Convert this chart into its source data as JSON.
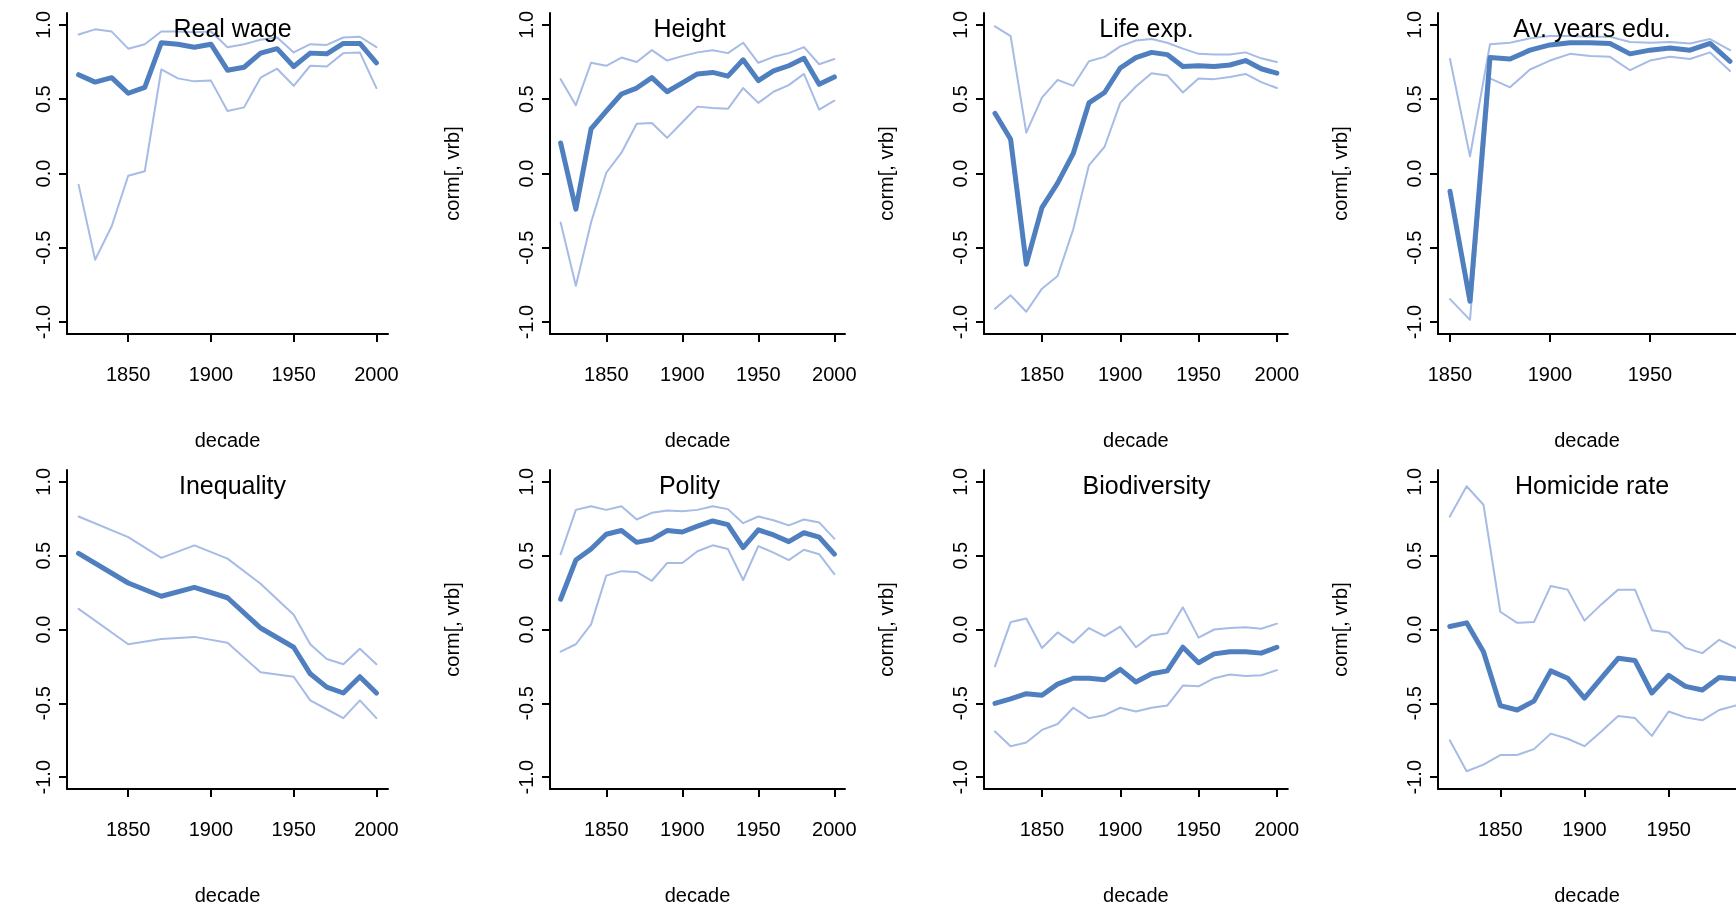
{
  "chart_data": [
    {
      "type": "line",
      "title": "Real wage",
      "xlabel": "decade",
      "grid": false,
      "marker": "none",
      "line_style": "solid",
      "x": [
        1820,
        1830,
        1840,
        1850,
        1860,
        1870,
        1880,
        1890,
        1900,
        1910,
        1920,
        1930,
        1940,
        1950,
        1960,
        1970,
        1980,
        1990,
        2000
      ],
      "xlim": [
        1813,
        2007
      ],
      "xticks": [
        1850,
        1900,
        1950,
        2000
      ],
      "ylim": [
        -1.08,
        1.08
      ],
      "yticks": [
        {
          "value": -1,
          "label": "-1.0"
        },
        {
          "value": -0.5,
          "label": "-0.5"
        },
        {
          "value": 0,
          "label": "0.0"
        },
        {
          "value": 0.5,
          "label": "0.5"
        },
        {
          "value": 1,
          "label": "1.0"
        }
      ],
      "series": [
        {
          "color": "#a6bbe6",
          "values": [
            0.935,
            0.97,
            0.955,
            0.84,
            0.87,
            0.955,
            0.955,
            0.95,
            0.955,
            0.85,
            0.87,
            0.9,
            0.915,
            0.815,
            0.87,
            0.865,
            0.915,
            0.92,
            0.85
          ]
        },
        {
          "color": "#4f7fbf",
          "values": [
            0.665,
            0.615,
            0.645,
            0.54,
            0.58,
            0.88,
            0.87,
            0.85,
            0.87,
            0.695,
            0.715,
            0.81,
            0.84,
            0.72,
            0.81,
            0.805,
            0.875,
            0.875,
            0.745
          ]
        },
        {
          "color": "#a6bbe6",
          "values": [
            -0.075,
            -0.58,
            -0.355,
            -0.015,
            0.015,
            0.7,
            0.64,
            0.62,
            0.625,
            0.42,
            0.445,
            0.645,
            0.705,
            0.59,
            0.725,
            0.72,
            0.81,
            0.815,
            0.575
          ]
        }
      ]
    },
    {
      "type": "line",
      "title": "Height",
      "xlabel": "decade",
      "ylabel": "corm[, vrb]",
      "grid": false,
      "marker": "none",
      "line_style": "solid",
      "x": [
        1820,
        1830,
        1840,
        1850,
        1860,
        1870,
        1880,
        1890,
        1900,
        1910,
        1920,
        1930,
        1940,
        1950,
        1960,
        1970,
        1980,
        1990,
        2000
      ],
      "xlim": [
        1813,
        2007
      ],
      "xticks": [
        1850,
        1900,
        1950,
        2000
      ],
      "ylim": [
        -1.08,
        1.08
      ],
      "yticks": [
        {
          "value": -1,
          "label": "-1.0"
        },
        {
          "value": -0.5,
          "label": "-0.5"
        },
        {
          "value": 0,
          "label": "0.0"
        },
        {
          "value": 0.5,
          "label": "0.5"
        },
        {
          "value": 1,
          "label": "1.0"
        }
      ],
      "series": [
        {
          "color": "#a6bbe6",
          "values": [
            0.635,
            0.46,
            0.745,
            0.725,
            0.78,
            0.75,
            0.83,
            0.76,
            0.79,
            0.815,
            0.83,
            0.81,
            0.88,
            0.745,
            0.785,
            0.81,
            0.85,
            0.735,
            0.77
          ]
        },
        {
          "color": "#4f7fbf",
          "values": [
            0.205,
            -0.24,
            0.3,
            0.42,
            0.535,
            0.575,
            0.645,
            0.55,
            0.61,
            0.67,
            0.68,
            0.655,
            0.765,
            0.625,
            0.69,
            0.725,
            0.775,
            0.6,
            0.65
          ]
        },
        {
          "color": "#a6bbe6",
          "values": [
            -0.33,
            -0.755,
            -0.33,
            0.005,
            0.14,
            0.335,
            0.34,
            0.24,
            0.345,
            0.45,
            0.44,
            0.435,
            0.575,
            0.475,
            0.55,
            0.595,
            0.67,
            0.43,
            0.49
          ]
        }
      ]
    },
    {
      "type": "line",
      "title": "Life exp.",
      "xlabel": "decade",
      "ylabel": "corm[, vrb]",
      "grid": false,
      "marker": "none",
      "line_style": "solid",
      "x": [
        1820,
        1830,
        1840,
        1850,
        1860,
        1870,
        1880,
        1890,
        1900,
        1910,
        1920,
        1930,
        1940,
        1950,
        1960,
        1970,
        1980,
        1990,
        2000
      ],
      "xlim": [
        1813,
        2007
      ],
      "xticks": [
        1850,
        1900,
        1950,
        2000
      ],
      "ylim": [
        -1.08,
        1.08
      ],
      "yticks": [
        {
          "value": -1,
          "label": "-1.0"
        },
        {
          "value": -0.5,
          "label": "-0.5"
        },
        {
          "value": 0,
          "label": "0.0"
        },
        {
          "value": 0.5,
          "label": "0.5"
        },
        {
          "value": 1,
          "label": "1.0"
        }
      ],
      "series": [
        {
          "color": "#a6bbe6",
          "values": [
            0.99,
            0.925,
            0.275,
            0.51,
            0.63,
            0.59,
            0.755,
            0.785,
            0.855,
            0.895,
            0.905,
            0.88,
            0.84,
            0.805,
            0.8,
            0.8,
            0.815,
            0.775,
            0.75
          ]
        },
        {
          "color": "#4f7fbf",
          "values": [
            0.405,
            0.23,
            -0.61,
            -0.23,
            -0.065,
            0.135,
            0.475,
            0.545,
            0.71,
            0.78,
            0.815,
            0.8,
            0.72,
            0.725,
            0.72,
            0.73,
            0.76,
            0.705,
            0.675
          ]
        },
        {
          "color": "#a6bbe6",
          "values": [
            -0.91,
            -0.82,
            -0.93,
            -0.775,
            -0.69,
            -0.375,
            0.055,
            0.18,
            0.475,
            0.585,
            0.675,
            0.66,
            0.545,
            0.64,
            0.635,
            0.65,
            0.67,
            0.615,
            0.575
          ]
        }
      ]
    },
    {
      "type": "line",
      "title": "Av. years edu.",
      "xlabel": "decade",
      "ylabel": "corm[, vrb]",
      "grid": false,
      "marker": "none",
      "line_style": "solid",
      "x": [
        1850,
        1860,
        1870,
        1880,
        1890,
        1900,
        1910,
        1920,
        1930,
        1940,
        1950,
        1960,
        1970,
        1980,
        1990
      ],
      "xlim": [
        1844,
        1993
      ],
      "xticks": [
        1850,
        1900,
        1950
      ],
      "ylim": [
        -1.08,
        1.08
      ],
      "yticks": [
        {
          "value": -1,
          "label": "-1.0"
        },
        {
          "value": -0.5,
          "label": "-0.5"
        },
        {
          "value": 0,
          "label": "0.0"
        },
        {
          "value": 0.5,
          "label": "0.5"
        },
        {
          "value": 1,
          "label": "1.0"
        }
      ],
      "series": [
        {
          "color": "#a6bbe6",
          "values": [
            0.77,
            0.115,
            0.87,
            0.88,
            0.91,
            0.925,
            0.925,
            0.92,
            0.92,
            0.885,
            0.88,
            0.885,
            0.875,
            0.905,
            0.83
          ]
        },
        {
          "color": "#4f7fbf",
          "values": [
            -0.12,
            -0.86,
            0.78,
            0.77,
            0.83,
            0.865,
            0.88,
            0.88,
            0.875,
            0.805,
            0.83,
            0.845,
            0.83,
            0.875,
            0.755
          ]
        },
        {
          "color": "#a6bbe6",
          "values": [
            -0.845,
            -0.985,
            0.64,
            0.58,
            0.7,
            0.76,
            0.805,
            0.79,
            0.785,
            0.695,
            0.76,
            0.785,
            0.77,
            0.815,
            0.69
          ]
        }
      ]
    },
    {
      "type": "line",
      "title": "Inequality",
      "xlabel": "decade",
      "grid": false,
      "marker": "none",
      "line_style": "solid",
      "x": [
        1820,
        1850,
        1870,
        1890,
        1910,
        1930,
        1950,
        1960,
        1970,
        1980,
        1990,
        2000
      ],
      "xlim": [
        1813,
        2007
      ],
      "xticks": [
        1850,
        1900,
        1950,
        2000
      ],
      "ylim": [
        -1.08,
        1.08
      ],
      "yticks": [
        {
          "value": -1,
          "label": "-1.0"
        },
        {
          "value": -0.5,
          "label": "-0.5"
        },
        {
          "value": 0,
          "label": "0.0"
        },
        {
          "value": 0.5,
          "label": "0.5"
        },
        {
          "value": 1,
          "label": "1.0"
        }
      ],
      "series": [
        {
          "color": "#a6bbe6",
          "values": [
            0.765,
            0.625,
            0.485,
            0.57,
            0.48,
            0.31,
            0.1,
            -0.1,
            -0.2,
            -0.235,
            -0.13,
            -0.235
          ]
        },
        {
          "color": "#4f7fbf",
          "values": [
            0.515,
            0.315,
            0.225,
            0.285,
            0.215,
            0.01,
            -0.12,
            -0.3,
            -0.39,
            -0.43,
            -0.32,
            -0.43
          ]
        },
        {
          "color": "#a6bbe6",
          "values": [
            0.14,
            -0.1,
            -0.065,
            -0.05,
            -0.09,
            -0.29,
            -0.32,
            -0.48,
            -0.54,
            -0.6,
            -0.48,
            -0.6
          ]
        }
      ]
    },
    {
      "type": "line",
      "title": "Polity",
      "xlabel": "decade",
      "ylabel": "corm[, vrb]",
      "grid": false,
      "marker": "none",
      "line_style": "solid",
      "x": [
        1820,
        1830,
        1840,
        1850,
        1860,
        1870,
        1880,
        1890,
        1900,
        1910,
        1920,
        1930,
        1940,
        1950,
        1960,
        1970,
        1980,
        1990,
        2000
      ],
      "xlim": [
        1813,
        2007
      ],
      "xticks": [
        1850,
        1900,
        1950,
        2000
      ],
      "ylim": [
        -1.08,
        1.08
      ],
      "yticks": [
        {
          "value": -1,
          "label": "-1.0"
        },
        {
          "value": -0.5,
          "label": "-0.5"
        },
        {
          "value": 0,
          "label": "0.0"
        },
        {
          "value": 0.5,
          "label": "0.5"
        },
        {
          "value": 1,
          "label": "1.0"
        }
      ],
      "series": [
        {
          "color": "#a6bbe6",
          "values": [
            0.51,
            0.81,
            0.835,
            0.81,
            0.835,
            0.745,
            0.79,
            0.805,
            0.8,
            0.81,
            0.835,
            0.815,
            0.72,
            0.765,
            0.74,
            0.705,
            0.745,
            0.725,
            0.615
          ]
        },
        {
          "color": "#4f7fbf",
          "values": [
            0.205,
            0.47,
            0.545,
            0.645,
            0.67,
            0.59,
            0.61,
            0.67,
            0.66,
            0.7,
            0.735,
            0.71,
            0.555,
            0.675,
            0.64,
            0.595,
            0.655,
            0.625,
            0.51
          ]
        },
        {
          "color": "#a6bbe6",
          "values": [
            -0.15,
            -0.1,
            0.035,
            0.365,
            0.395,
            0.39,
            0.33,
            0.45,
            0.45,
            0.53,
            0.57,
            0.545,
            0.335,
            0.565,
            0.52,
            0.47,
            0.54,
            0.51,
            0.375
          ]
        }
      ]
    },
    {
      "type": "line",
      "title": "Biodiversity",
      "xlabel": "decade",
      "ylabel": "corm[, vrb]",
      "grid": false,
      "marker": "none",
      "line_style": "solid",
      "x": [
        1820,
        1830,
        1840,
        1850,
        1860,
        1870,
        1880,
        1890,
        1900,
        1910,
        1920,
        1930,
        1940,
        1950,
        1960,
        1970,
        1980,
        1990,
        2000
      ],
      "xlim": [
        1813,
        2007
      ],
      "xticks": [
        1850,
        1900,
        1950,
        2000
      ],
      "ylim": [
        -1.08,
        1.08
      ],
      "yticks": [
        {
          "value": -1,
          "label": "-1.0"
        },
        {
          "value": -0.5,
          "label": "-0.5"
        },
        {
          "value": 0,
          "label": "0.0"
        },
        {
          "value": 0.5,
          "label": "0.5"
        },
        {
          "value": 1,
          "label": "1.0"
        }
      ],
      "series": [
        {
          "color": "#a6bbe6",
          "values": [
            -0.25,
            0.05,
            0.075,
            -0.125,
            -0.02,
            -0.09,
            0.01,
            -0.045,
            0.02,
            -0.12,
            -0.04,
            -0.025,
            0.15,
            -0.055,
            0,
            0.01,
            0.015,
            0.005,
            0.04
          ]
        },
        {
          "color": "#4f7fbf",
          "values": [
            -0.5,
            -0.47,
            -0.435,
            -0.445,
            -0.37,
            -0.33,
            -0.33,
            -0.34,
            -0.27,
            -0.355,
            -0.3,
            -0.28,
            -0.12,
            -0.225,
            -0.165,
            -0.15,
            -0.15,
            -0.16,
            -0.12
          ]
        },
        {
          "color": "#a6bbe6",
          "values": [
            -0.69,
            -0.79,
            -0.765,
            -0.68,
            -0.64,
            -0.53,
            -0.6,
            -0.58,
            -0.53,
            -0.555,
            -0.53,
            -0.515,
            -0.38,
            -0.385,
            -0.33,
            -0.305,
            -0.315,
            -0.31,
            -0.275
          ]
        }
      ]
    },
    {
      "type": "line",
      "title": "Homicide rate",
      "xlabel": "decade",
      "ylabel": "corm[, vrb]",
      "grid": false,
      "marker": "none",
      "line_style": "solid",
      "x": [
        1820,
        1830,
        1840,
        1850,
        1860,
        1870,
        1880,
        1890,
        1900,
        1910,
        1920,
        1930,
        1940,
        1950,
        1960,
        1970,
        1980,
        1990
      ],
      "xlim": [
        1813,
        1990
      ],
      "xticks": [
        1850,
        1900,
        1950
      ],
      "ylim": [
        -1.08,
        1.08
      ],
      "yticks": [
        {
          "value": -1,
          "label": "-1.0"
        },
        {
          "value": -0.5,
          "label": "-0.5"
        },
        {
          "value": 0,
          "label": "0.0"
        },
        {
          "value": 0.5,
          "label": "0.5"
        },
        {
          "value": 1,
          "label": "1.0"
        }
      ],
      "series": [
        {
          "color": "#a6bbe6",
          "values": [
            0.765,
            0.97,
            0.845,
            0.12,
            0.045,
            0.05,
            0.295,
            0.27,
            0.06,
            0.17,
            0.27,
            0.27,
            -0.005,
            -0.02,
            -0.125,
            -0.16,
            -0.07,
            -0.125
          ]
        },
        {
          "color": "#4f7fbf",
          "values": [
            0.02,
            0.045,
            -0.15,
            -0.515,
            -0.545,
            -0.485,
            -0.28,
            -0.33,
            -0.465,
            -0.33,
            -0.195,
            -0.21,
            -0.43,
            -0.31,
            -0.385,
            -0.41,
            -0.325,
            -0.335
          ]
        },
        {
          "color": "#a6bbe6",
          "values": [
            -0.75,
            -0.96,
            -0.915,
            -0.85,
            -0.85,
            -0.81,
            -0.705,
            -0.74,
            -0.79,
            -0.69,
            -0.585,
            -0.6,
            -0.72,
            -0.555,
            -0.595,
            -0.615,
            -0.545,
            -0.515
          ]
        }
      ]
    }
  ]
}
